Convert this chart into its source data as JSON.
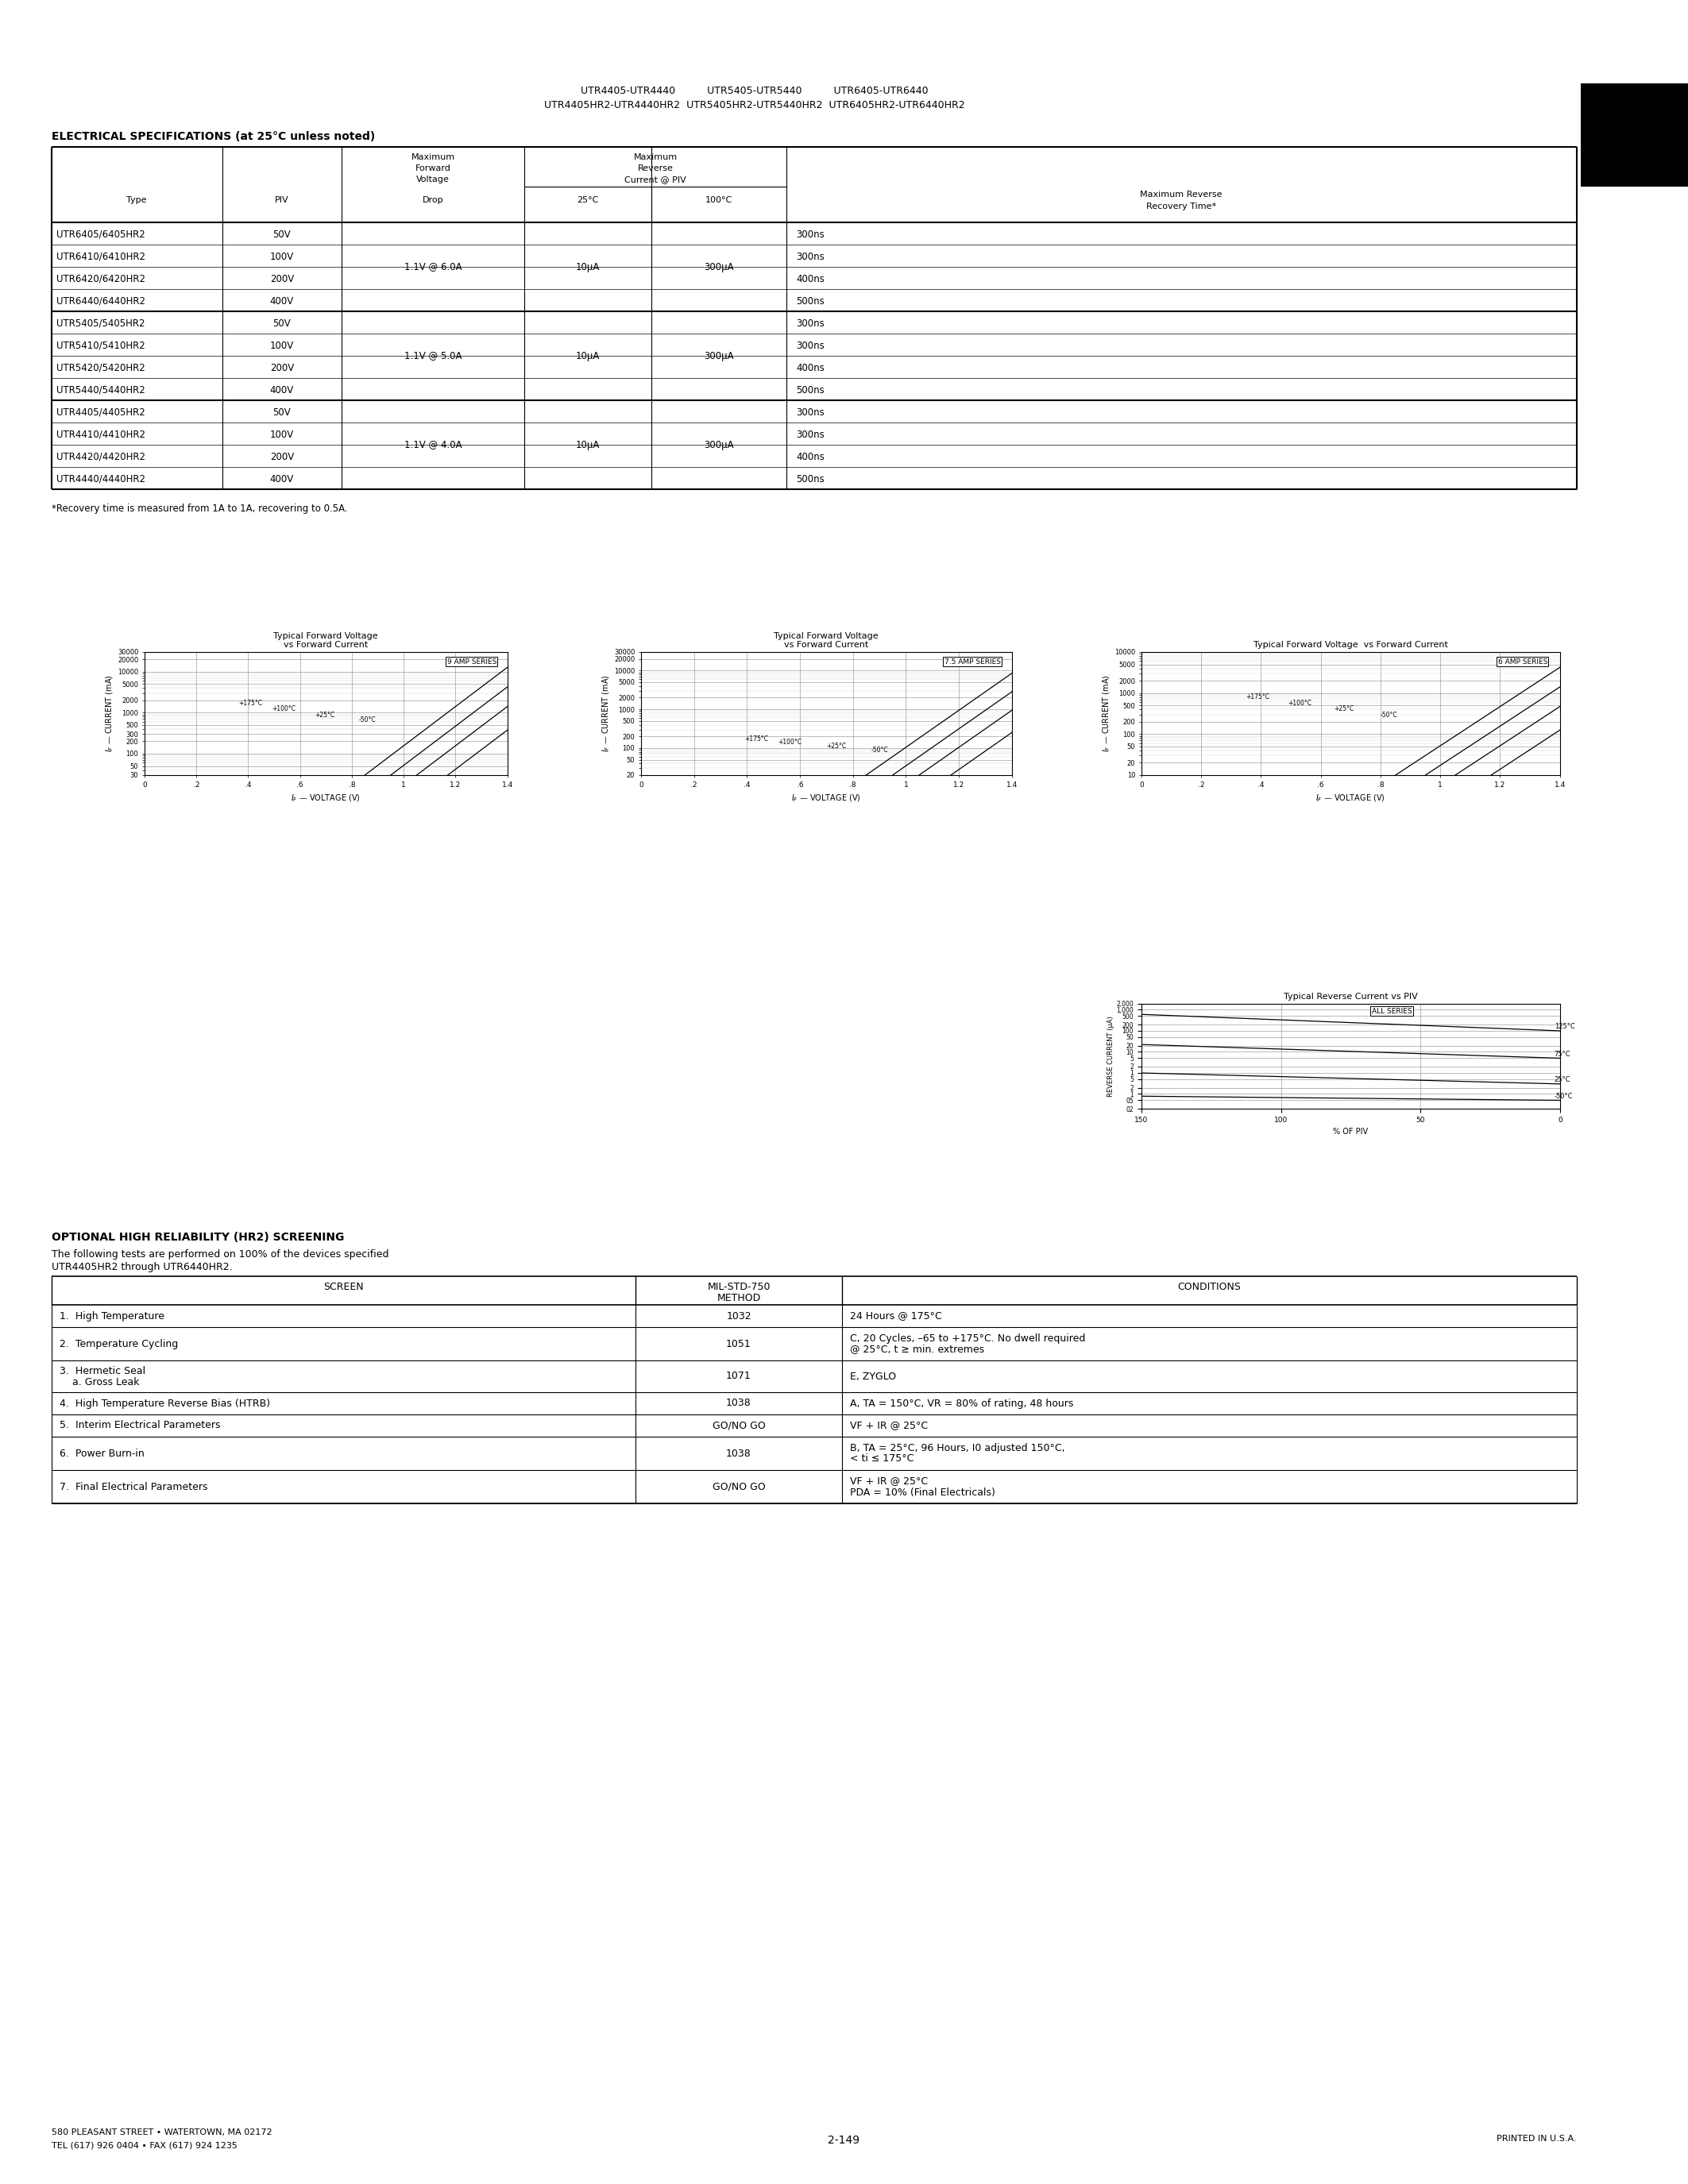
{
  "page_title_line1": "UTR4405-UTR4440          UTR5405-UTR5440          UTR6405-UTR6440",
  "page_title_line2": "UTR4405HR2-UTR4440HR2  UTR5405HR2-UTR5440HR2  UTR6405HR2-UTR6440HR2",
  "page_number": "2",
  "elec_spec_header": "ELECTRICAL SPECIFICATIONS (at 25°C unless noted)",
  "table_rows_g1": [
    [
      "UTR6405/6405HR2",
      "50V",
      "300ns"
    ],
    [
      "UTR6410/6410HR2",
      "100V",
      "300ns"
    ],
    [
      "UTR6420/6420HR2",
      "200V",
      "400ns"
    ],
    [
      "UTR6440/6440HR2",
      "400V",
      "500ns"
    ]
  ],
  "table_rows_g2": [
    [
      "UTR5405/5405HR2",
      "50V",
      "300ns"
    ],
    [
      "UTR5410/5410HR2",
      "100V",
      "300ns"
    ],
    [
      "UTR5420/5420HR2",
      "200V",
      "400ns"
    ],
    [
      "UTR5440/5440HR2",
      "400V",
      "500ns"
    ]
  ],
  "table_rows_g3": [
    [
      "UTR4405/4405HR2",
      "50V",
      "300ns"
    ],
    [
      "UTR4410/4410HR2",
      "100V",
      "300ns"
    ],
    [
      "UTR4420/4420HR2",
      "200V",
      "400ns"
    ],
    [
      "UTR4440/4440HR2",
      "400V",
      "500ns"
    ]
  ],
  "g1_voltage": "1.1V @ 6.0A",
  "g2_voltage": "1.1V @ 5.0A",
  "g3_voltage": "1.1V @ 4.0A",
  "forward_current_25": "10μA",
  "reverse_current_100": "300μA",
  "footnote": "*Recovery time is measured from 1A to 1A, recovering to 0.5A.",
  "optional_header": "OPTIONAL HIGH RELIABILITY (HR2) SCREENING",
  "optional_sub1": "The following tests are performed on 100% of the devices specified",
  "optional_sub2": "UTR4405HR2 through UTR6440HR2.",
  "screen_rows": [
    [
      "1.  High Temperature",
      "1032",
      "24 Hours @ 175°C"
    ],
    [
      "2.  Temperature Cycling",
      "1051",
      "C, 20 Cycles, –65 to +175°C. No dwell required\n@ 25°C, t ≥ min. extremes"
    ],
    [
      "3.  Hermetic Seal\n    a. Gross Leak",
      "1071",
      "E, ZYGLO"
    ],
    [
      "4.  High Temperature Reverse Bias (HTRB)",
      "1038",
      "A, TA = 150°C, VR = 80% of rating, 48 hours"
    ],
    [
      "5.  Interim Electrical Parameters",
      "GO/NO GO",
      "VF + IR @ 25°C"
    ],
    [
      "6.  Power Burn-in",
      "1038",
      "B, TA = 25°C, 96 Hours, I0 adjusted 150°C,\n< ti ≤ 175°C"
    ],
    [
      "7.  Final Electrical Parameters",
      "GO/NO GO",
      "VF + IR @ 25°C\nPDA = 10% (Final Electricals)"
    ]
  ],
  "footer_left": "580 PLEASANT STREET • WATERTOWN, MA 02172\nTEL (617) 926 0404 • FAX (617) 924 1235",
  "footer_center": "2-149",
  "footer_right": "PRINTED IN U.S.A."
}
